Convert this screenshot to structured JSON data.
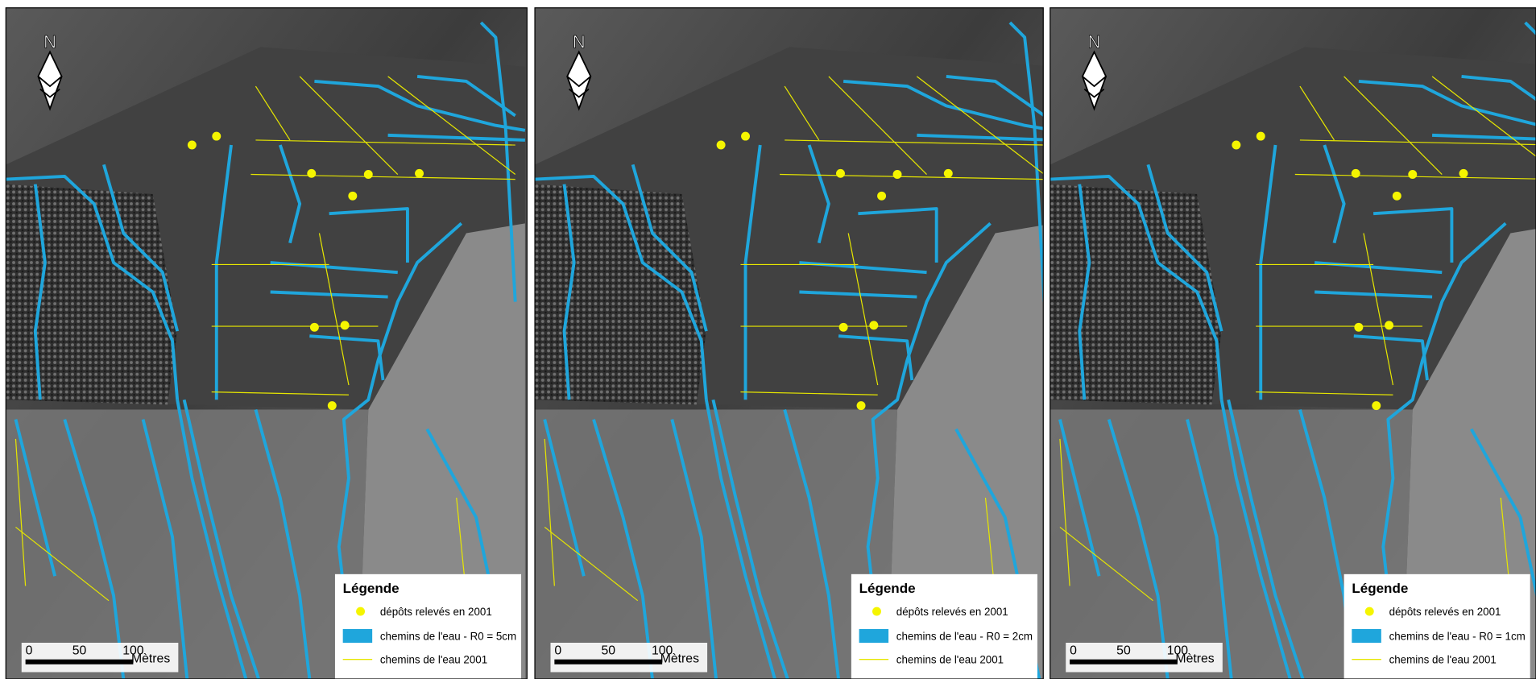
{
  "panels": [
    {
      "north": "N",
      "scale_labels": [
        "0",
        "50",
        "100"
      ],
      "scale_unit": "Mètres",
      "legend": {
        "title": "Légende",
        "items": [
          "dépôts relevés en 2001",
          "chemins de l'eau - R0 = 5cm",
          "chemins de l'eau 2001"
        ]
      }
    },
    {
      "north": "N",
      "scale_labels": [
        "0",
        "50",
        "100"
      ],
      "scale_unit": "Mètres",
      "legend": {
        "title": "Légende",
        "items": [
          "dépôts relevés en 2001",
          "chemins de l'eau - R0 = 2cm",
          "chemins de l'eau 2001"
        ]
      }
    },
    {
      "north": "N",
      "scale_labels": [
        "0",
        "50",
        "100"
      ],
      "scale_unit": "Mètres",
      "legend": {
        "title": "Légende",
        "items": [
          "dépôts relevés en 2001",
          "chemins de l'eau - R0 = 1cm",
          "chemins de l'eau 2001"
        ]
      }
    }
  ]
}
